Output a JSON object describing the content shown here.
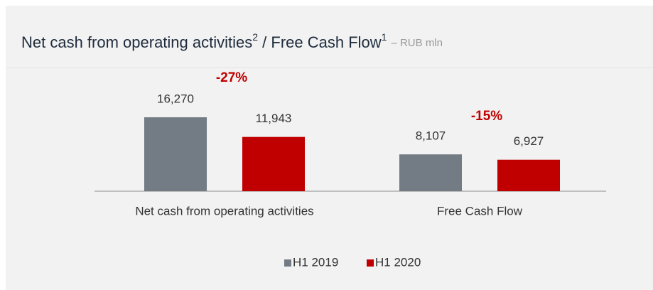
{
  "chart_data": {
    "type": "bar",
    "title": [
      "Net cash from operating activities",
      "2",
      " / Free Cash Flow",
      "1"
    ],
    "subtitle": "– RUB mln",
    "categories": [
      "Net cash from operating activities",
      "Free Cash Flow"
    ],
    "series": [
      {
        "name": "H1 2019",
        "color": "#737b84",
        "values": [
          16270,
          8107
        ],
        "value_labels": [
          "16,270",
          "8,107"
        ]
      },
      {
        "name": "H1 2020",
        "color": "#c00000",
        "values": [
          11943,
          6927
        ],
        "value_labels": [
          "11,943",
          "6,927"
        ]
      }
    ],
    "annotations": [
      "-27%",
      "-15%"
    ]
  }
}
